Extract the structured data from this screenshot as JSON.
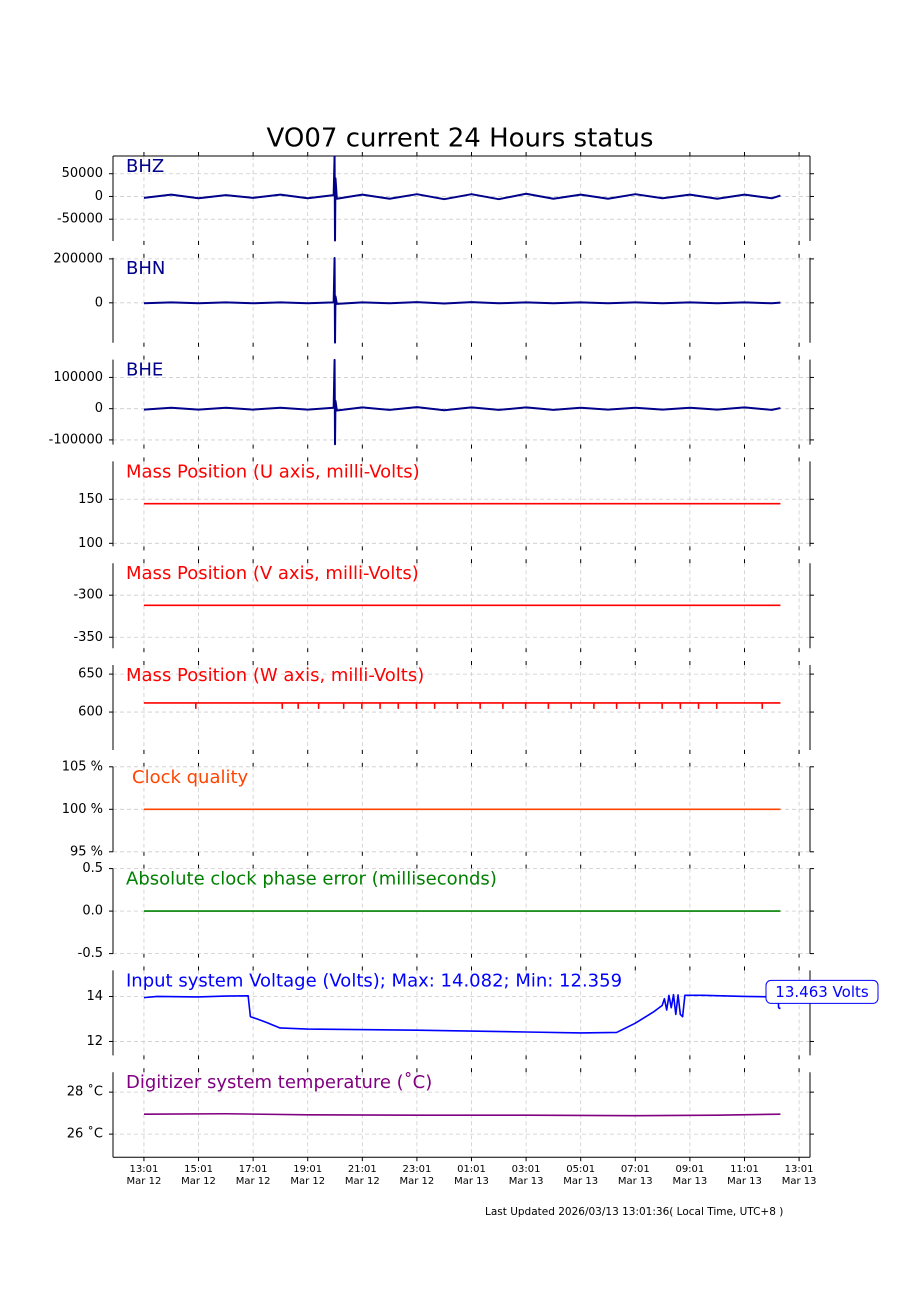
{
  "title": "VO07 current 24 Hours status",
  "footer": "Last Updated 2026/03/13 13:01:36( Local Time, UTC+8 )",
  "xlim": [
    "Mar 12 11:53",
    "Mar 13 13:25"
  ],
  "xticks": [
    {
      "value": "Mar 12 13:01",
      "label": "13:01\nMar 12"
    },
    {
      "value": "Mar 12 15:01",
      "label": "15:01\nMar 12"
    },
    {
      "value": "Mar 12 17:01",
      "label": "17:01\nMar 12"
    },
    {
      "value": "Mar 12 19:01",
      "label": "19:01\nMar 12"
    },
    {
      "value": "Mar 12 21:01",
      "label": "21:01\nMar 12"
    },
    {
      "value": "Mar 12 23:01",
      "label": "23:01\nMar 12"
    },
    {
      "value": "Mar 13 01:01",
      "label": "01:01\nMar 13"
    },
    {
      "value": "Mar 13 03:01",
      "label": "03:01\nMar 13"
    },
    {
      "value": "Mar 13 05:01",
      "label": "05:01\nMar 13"
    },
    {
      "value": "Mar 13 07:01",
      "label": "07:01\nMar 13"
    },
    {
      "value": "Mar 13 09:01",
      "label": "09:01\nMar 13"
    },
    {
      "value": "Mar 13 11:01",
      "label": "11:01\nMar 13"
    },
    {
      "value": "Mar 13 13:01",
      "label": "13:01\nMar 13"
    }
  ],
  "chart_data": [
    {
      "type": "line",
      "title": "BHZ",
      "color": "#00008b",
      "ylim": [
        -98000,
        89000
      ],
      "yticks": [
        -50000,
        0,
        50000
      ],
      "grid": true,
      "x": [
        "Mar 12 13:01",
        "Mar 12 14:01",
        "Mar 12 15:01",
        "Mar 12 16:01",
        "Mar 12 17:01",
        "Mar 12 18:01",
        "Mar 12 19:01",
        "Mar 12 19:58",
        "Mar 12 20:00",
        "Mar 12 20:01",
        "Mar 12 20:02",
        "Mar 12 20:05",
        "Mar 12 21:01",
        "Mar 12 22:01",
        "Mar 12 23:01",
        "Mar 13 00:01",
        "Mar 13 01:01",
        "Mar 13 02:01",
        "Mar 13 03:01",
        "Mar 13 04:01",
        "Mar 13 05:01",
        "Mar 13 06:01",
        "Mar 13 07:01",
        "Mar 13 08:01",
        "Mar 13 09:01",
        "Mar 13 10:01",
        "Mar 13 11:01",
        "Mar 13 12:01",
        "Mar 13 12:20"
      ],
      "values": [
        -3000,
        4000,
        -4000,
        3000,
        -3000,
        4000,
        -4000,
        3000,
        88000,
        -97000,
        40000,
        -5000,
        4000,
        -5000,
        5000,
        -6000,
        5000,
        -6000,
        6000,
        -5000,
        4000,
        -5000,
        5000,
        -4000,
        4000,
        -5000,
        4000,
        -4000,
        2000
      ]
    },
    {
      "type": "line",
      "title": "BHN",
      "color": "#00008b",
      "ylim": [
        -182000,
        205000
      ],
      "yticks": [
        0,
        200000
      ],
      "grid": true,
      "x": [
        "Mar 12 13:01",
        "Mar 12 14:01",
        "Mar 12 15:01",
        "Mar 12 16:01",
        "Mar 12 17:01",
        "Mar 12 18:01",
        "Mar 12 19:01",
        "Mar 12 19:58",
        "Mar 12 20:00",
        "Mar 12 20:01",
        "Mar 12 20:02",
        "Mar 12 20:05",
        "Mar 12 21:01",
        "Mar 12 22:01",
        "Mar 12 23:01",
        "Mar 13 00:01",
        "Mar 13 01:01",
        "Mar 13 02:01",
        "Mar 13 03:01",
        "Mar 13 04:01",
        "Mar 13 05:01",
        "Mar 13 06:01",
        "Mar 13 07:01",
        "Mar 13 08:01",
        "Mar 13 09:01",
        "Mar 13 10:01",
        "Mar 13 11:01",
        "Mar 13 12:01",
        "Mar 13 12:20"
      ],
      "values": [
        -2000,
        2000,
        -2000,
        2000,
        -2000,
        2000,
        -2000,
        2000,
        204000,
        -181000,
        30000,
        -5000,
        2000,
        -2000,
        3000,
        -3000,
        3000,
        -2000,
        2000,
        -2000,
        2000,
        -2000,
        2000,
        -2000,
        2000,
        -2000,
        2000,
        -2000,
        1000
      ]
    },
    {
      "type": "line",
      "title": "BHE",
      "color": "#00008b",
      "ylim": [
        -115000,
        157000
      ],
      "yticks": [
        -100000,
        0,
        100000
      ],
      "grid": true,
      "x": [
        "Mar 12 13:01",
        "Mar 12 14:01",
        "Mar 12 15:01",
        "Mar 12 16:01",
        "Mar 12 17:01",
        "Mar 12 18:01",
        "Mar 12 19:01",
        "Mar 12 19:58",
        "Mar 12 20:00",
        "Mar 12 20:01",
        "Mar 12 20:02",
        "Mar 12 20:05",
        "Mar 12 21:01",
        "Mar 12 22:01",
        "Mar 12 23:01",
        "Mar 13 00:01",
        "Mar 13 01:01",
        "Mar 13 02:01",
        "Mar 13 03:01",
        "Mar 13 04:01",
        "Mar 13 05:01",
        "Mar 13 06:01",
        "Mar 13 07:01",
        "Mar 13 08:01",
        "Mar 13 09:01",
        "Mar 13 10:01",
        "Mar 13 11:01",
        "Mar 13 12:01",
        "Mar 13 12:20"
      ],
      "values": [
        -3000,
        3000,
        -3000,
        3000,
        -3000,
        3000,
        -3000,
        3000,
        156000,
        -114000,
        25000,
        -6000,
        4000,
        -4000,
        5000,
        -5000,
        4000,
        -4000,
        4000,
        -4000,
        3000,
        -3000,
        3000,
        -3000,
        3000,
        -3000,
        4000,
        -4000,
        2000
      ]
    },
    {
      "type": "line",
      "title": "Mass Position (U axis, milli-Volts)",
      "color": "#ff0000",
      "ylim": [
        96.5,
        193
      ],
      "yticks": [
        100,
        150
      ],
      "grid": true,
      "x": [
        "Mar 12 13:01",
        "Mar 13 12:20"
      ],
      "values": [
        145,
        145
      ]
    },
    {
      "type": "line",
      "title": "Mass Position (V axis, milli-Volts)",
      "color": "#ff0000",
      "ylim": [
        -363,
        -262
      ],
      "yticks": [
        -350,
        -300
      ],
      "grid": true,
      "x": [
        "Mar 12 13:01",
        "Mar 13 12:20"
      ],
      "values": [
        -312,
        -312
      ]
    },
    {
      "type": "line",
      "title": "Mass Position (W axis, milli-Volts)",
      "color": "#ff0000",
      "ylim": [
        550,
        662
      ],
      "yticks": [
        600,
        650
      ],
      "grid": true,
      "x": [
        "Mar 12 13:01",
        "Mar 12 14:55",
        "Mar 12 14:55",
        "Mar 12 14:55",
        "Mar 12 18:05",
        "Mar 12 18:05",
        "Mar 12 18:05",
        "Mar 12 18:40",
        "Mar 12 18:40",
        "Mar 12 18:40",
        "Mar 12 19:25",
        "Mar 12 19:25",
        "Mar 12 19:25",
        "Mar 12 20:20",
        "Mar 12 20:20",
        "Mar 12 20:20",
        "Mar 12 21:00",
        "Mar 12 21:00",
        "Mar 12 21:00",
        "Mar 12 21:40",
        "Mar 12 21:40",
        "Mar 12 21:40",
        "Mar 12 22:20",
        "Mar 12 22:20",
        "Mar 12 22:20",
        "Mar 12 23:00",
        "Mar 12 23:00",
        "Mar 12 23:00",
        "Mar 12 23:40",
        "Mar 12 23:40",
        "Mar 12 23:40",
        "Mar 13 00:30",
        "Mar 13 00:30",
        "Mar 13 00:30",
        "Mar 13 01:20",
        "Mar 13 01:20",
        "Mar 13 01:20",
        "Mar 13 02:10",
        "Mar 13 02:10",
        "Mar 13 02:10",
        "Mar 13 03:00",
        "Mar 13 03:00",
        "Mar 13 03:00",
        "Mar 13 03:50",
        "Mar 13 03:50",
        "Mar 13 03:50",
        "Mar 13 04:40",
        "Mar 13 04:40",
        "Mar 13 04:40",
        "Mar 13 05:30",
        "Mar 13 05:30",
        "Mar 13 05:30",
        "Mar 13 06:20",
        "Mar 13 06:20",
        "Mar 13 06:20",
        "Mar 13 07:10",
        "Mar 13 07:10",
        "Mar 13 07:10",
        "Mar 13 08:00",
        "Mar 13 08:00",
        "Mar 13 08:00",
        "Mar 13 08:40",
        "Mar 13 08:40",
        "Mar 13 08:40",
        "Mar 13 09:20",
        "Mar 13 09:20",
        "Mar 13 09:20",
        "Mar 13 10:00",
        "Mar 13 10:00",
        "Mar 13 10:00",
        "Mar 13 11:40",
        "Mar 13 11:40",
        "Mar 13 11:40",
        "Mar 13 12:20"
      ],
      "values": [
        612,
        612,
        605,
        612,
        612,
        605,
        612,
        612,
        605,
        612,
        612,
        605,
        612,
        612,
        605,
        612,
        612,
        605,
        612,
        612,
        605,
        612,
        612,
        605,
        612,
        612,
        605,
        612,
        612,
        605,
        612,
        612,
        605,
        612,
        612,
        605,
        612,
        612,
        605,
        612,
        612,
        605,
        612,
        612,
        605,
        612,
        612,
        605,
        612,
        612,
        605,
        612,
        612,
        605,
        612,
        612,
        605,
        612,
        612,
        605,
        612,
        612,
        605,
        612,
        612,
        605,
        612,
        612,
        605,
        612,
        612,
        605,
        612,
        612
      ]
    },
    {
      "type": "line",
      "title": "Clock quality",
      "color": "#ff4500",
      "ylim": [
        95,
        105
      ],
      "yticks": [
        {
          "value": 95,
          "label": "95 %"
        },
        {
          "value": 100,
          "label": "100 %"
        },
        {
          "value": 105,
          "label": "105 %"
        }
      ],
      "grid": true,
      "x": [
        "Mar 12 13:01",
        "Mar 13 12:20"
      ],
      "values": [
        100,
        100
      ]
    },
    {
      "type": "line",
      "title": "Absolute clock phase error (milliseconds)",
      "color": "#008000",
      "ylim": [
        -0.5,
        0.5
      ],
      "yticks": [
        {
          "value": -0.5,
          "label": "-0.5"
        },
        {
          "value": 0,
          "label": "0.0"
        },
        {
          "value": 0.5,
          "label": "0.5"
        }
      ],
      "grid": true,
      "x": [
        "Mar 12 13:01",
        "Mar 13 12:20"
      ],
      "values": [
        0,
        0
      ]
    },
    {
      "type": "line",
      "title": "Input system Voltage (Volts);    Max: 14.082; Min: 12.359",
      "color": "#0000ff",
      "ylim": [
        11.38,
        15.16
      ],
      "yticks": [
        12,
        14
      ],
      "grid": true,
      "annotation": "13.463 Volts",
      "x": [
        "Mar 12 13:01",
        "Mar 12 13:30",
        "Mar 12 15:00",
        "Mar 12 16:00",
        "Mar 12 16:50",
        "Mar 12 16:55",
        "Mar 12 17:10",
        "Mar 12 17:30",
        "Mar 12 18:00",
        "Mar 12 19:00",
        "Mar 12 23:01",
        "Mar 13 03:01",
        "Mar 13 05:01",
        "Mar 13 06:20",
        "Mar 13 07:00",
        "Mar 13 07:40",
        "Mar 13 08:00",
        "Mar 13 08:05",
        "Mar 13 08:10",
        "Mar 13 08:15",
        "Mar 13 08:20",
        "Mar 13 08:25",
        "Mar 13 08:30",
        "Mar 13 08:35",
        "Mar 13 08:40",
        "Mar 13 08:45",
        "Mar 13 08:50",
        "Mar 13 09:30",
        "Mar 13 11:01",
        "Mar 13 12:15",
        "Mar 13 12:16",
        "Mar 13 12:20"
      ],
      "values": [
        13.95,
        14.0,
        13.98,
        14.02,
        14.03,
        13.1,
        13.0,
        12.85,
        12.6,
        12.55,
        12.5,
        12.42,
        12.38,
        12.4,
        12.8,
        13.3,
        13.6,
        13.9,
        13.4,
        14.05,
        13.5,
        14.08,
        13.2,
        14.07,
        13.2,
        13.1,
        14.05,
        14.05,
        14.0,
        13.98,
        13.5,
        13.46
      ]
    },
    {
      "type": "line",
      "title": "Digitizer system temperature (˚C)",
      "color": "#800080",
      "ylim": [
        24.9,
        28.95
      ],
      "yticks": [
        {
          "value": 26,
          "label": "26 ˚C"
        },
        {
          "value": 28,
          "label": "28 ˚C"
        }
      ],
      "grid": true,
      "x": [
        "Mar 12 13:01",
        "Mar 12 16:01",
        "Mar 12 19:01",
        "Mar 12 23:01",
        "Mar 13 03:01",
        "Mar 13 07:01",
        "Mar 13 10:01",
        "Mar 13 12:20"
      ],
      "values": [
        26.95,
        26.97,
        26.92,
        26.9,
        26.9,
        26.88,
        26.9,
        26.95
      ]
    }
  ]
}
